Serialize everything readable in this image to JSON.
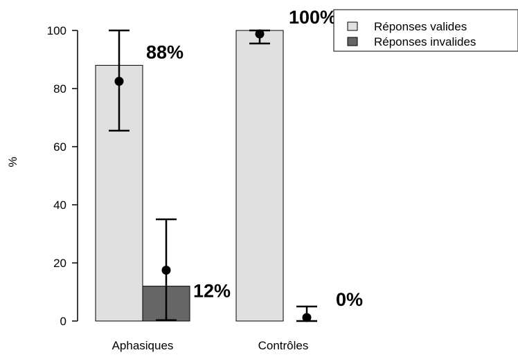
{
  "chart_data": {
    "type": "bar",
    "categories": [
      "Aphasiques",
      "Contrôles"
    ],
    "ylabel": "%",
    "ylim": [
      0,
      100
    ],
    "yticks": [
      0,
      20,
      40,
      60,
      80,
      100
    ],
    "legend_position": "top-right",
    "series": [
      {
        "name": "Réponses valides",
        "color": "#e0e0e0",
        "values": [
          88,
          100
        ],
        "points": [
          82.5,
          98.8
        ],
        "error_low": [
          65.5,
          95.5
        ],
        "error_high": [
          100,
          100
        ],
        "labels": [
          "88%",
          "100%"
        ]
      },
      {
        "name": "Réponses invalides",
        "color": "#666666",
        "values": [
          12,
          0
        ],
        "points": [
          17.5,
          1.2
        ],
        "error_low": [
          0.3,
          0
        ],
        "error_high": [
          35,
          5
        ],
        "labels": [
          "12%",
          "0%"
        ]
      }
    ]
  }
}
